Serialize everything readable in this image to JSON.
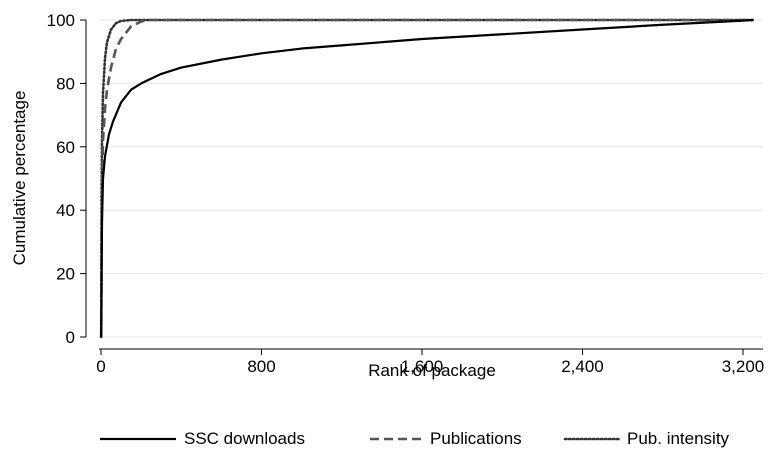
{
  "chart_data": {
    "type": "line",
    "xlabel": "Rank of package",
    "ylabel": "Cumulative percentage",
    "xlim": [
      0,
      3300
    ],
    "ylim": [
      0,
      100
    ],
    "x_ticks": [
      0,
      800,
      1600,
      2400,
      3200
    ],
    "x_tick_labels": [
      "0",
      "800",
      "1,600",
      "2,400",
      "3,200"
    ],
    "y_ticks": [
      0,
      20,
      40,
      60,
      80,
      100
    ],
    "y_tick_labels": [
      "0",
      "20",
      "40",
      "60",
      "80",
      "100"
    ],
    "grid": true,
    "legend_position": "bottom",
    "series": [
      {
        "name": "SSC downloads",
        "style": "solid",
        "color": "#000000",
        "x": [
          1,
          5,
          10,
          20,
          40,
          60,
          80,
          100,
          150,
          200,
          300,
          400,
          600,
          800,
          1000,
          1200,
          1600,
          2000,
          2400,
          2800,
          3200,
          3250
        ],
        "y": [
          0,
          36,
          50,
          57,
          64,
          68,
          71,
          74,
          78,
          80,
          83,
          85,
          87.5,
          89.5,
          91,
          92,
          94,
          95.5,
          97,
          98.5,
          99.8,
          100
        ]
      },
      {
        "name": "Publications",
        "style": "dashed",
        "color": "#555555",
        "x": [
          1,
          3,
          5,
          10,
          20,
          30,
          50,
          75,
          100,
          150,
          200,
          230,
          3250
        ],
        "y": [
          0,
          35,
          48,
          62,
          72,
          78,
          85,
          91,
          94,
          98,
          99.5,
          100,
          100
        ]
      },
      {
        "name": "Pub. intensity",
        "style": "dotted",
        "color": "#333333",
        "x": [
          1,
          3,
          5,
          10,
          20,
          30,
          50,
          75,
          100,
          150,
          200,
          3250
        ],
        "y": [
          0,
          46,
          62,
          77,
          88,
          93,
          97,
          99,
          99.7,
          100,
          100,
          100
        ]
      }
    ]
  }
}
